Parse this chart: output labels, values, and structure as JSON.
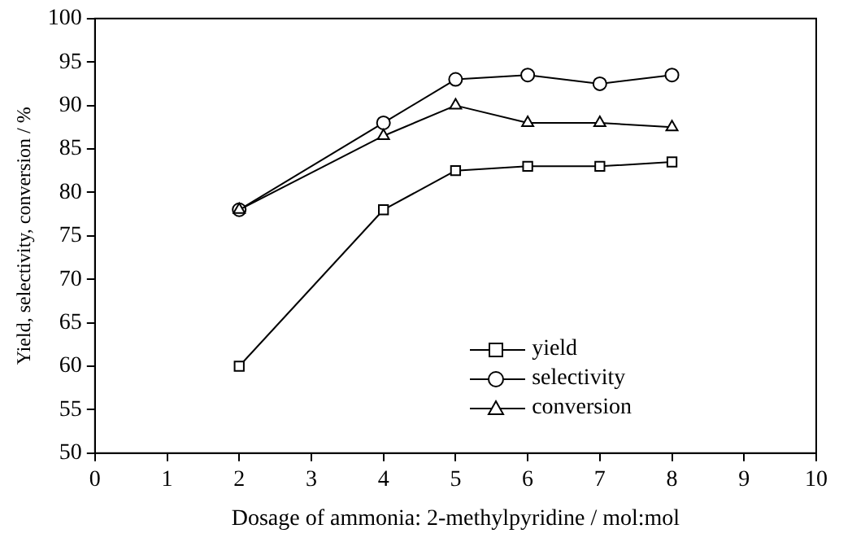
{
  "chart_data": {
    "type": "line",
    "xlabel": "Dosage of ammonia: 2-methylpyridine / mol:mol",
    "ylabel": "Yield, selectivity, conversion / %",
    "x": [
      2,
      4,
      5,
      6,
      7,
      8
    ],
    "series": [
      {
        "name": "yield",
        "color": "#000000",
        "marker": "square",
        "values": [
          60,
          78,
          82.5,
          83,
          83,
          83.5
        ]
      },
      {
        "name": "selectivity",
        "color": "#000000",
        "marker": "circle",
        "values": [
          78,
          88,
          93,
          93.5,
          92.5,
          93.5
        ]
      },
      {
        "name": "conversion",
        "color": "#000000",
        "marker": "triangle",
        "values": [
          78,
          86.5,
          90,
          88,
          88,
          87.5
        ]
      }
    ],
    "xlim": [
      0,
      10
    ],
    "xticks": [
      0,
      1,
      2,
      3,
      4,
      5,
      6,
      7,
      8,
      9,
      10
    ],
    "ylim": [
      50,
      100
    ],
    "yticks": [
      50,
      55,
      60,
      65,
      70,
      75,
      80,
      85,
      90,
      95,
      100
    ],
    "grid": false,
    "legend": "bottom right",
    "line_style": "solid"
  }
}
